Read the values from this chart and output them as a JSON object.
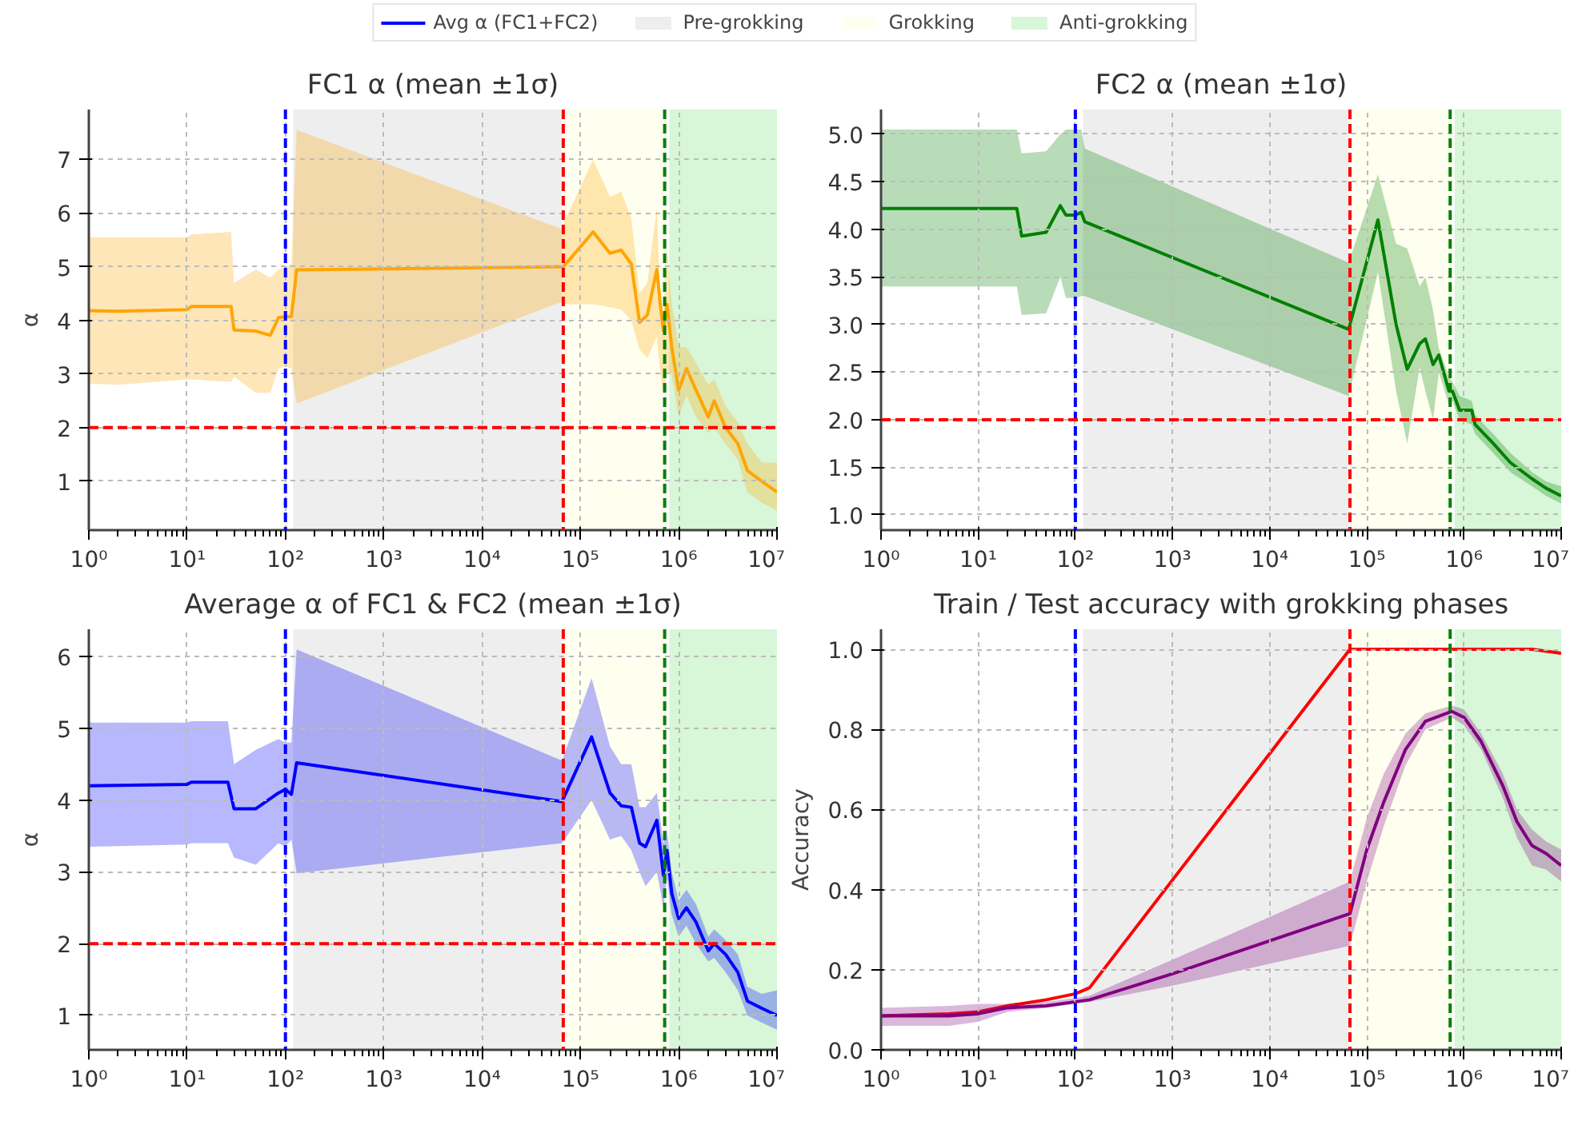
{
  "chart_data": [
    {
      "type": "line",
      "title": "FC1 α (mean ±1σ)",
      "ylabel": "α",
      "log": "x",
      "grid": true,
      "xlim": [
        1,
        10000000
      ],
      "ylim": [
        0.09,
        7.93
      ],
      "xticks": [
        {
          "value": 1,
          "label": "10⁰"
        },
        {
          "value": 10,
          "label": "10¹"
        },
        {
          "value": 100,
          "label": "10²"
        },
        {
          "value": 1000,
          "label": "10³"
        },
        {
          "value": 10000,
          "label": "10⁴"
        },
        {
          "value": 100000,
          "label": "10⁵"
        },
        {
          "value": 1000000,
          "label": "10⁶"
        },
        {
          "value": 10000000,
          "label": "10⁷"
        }
      ],
      "yticks": [
        1,
        2,
        3,
        4,
        5,
        6,
        7
      ],
      "bands": [
        {
          "axis": "x",
          "from": 120,
          "to": 65000,
          "color": "#eeeeee"
        },
        {
          "axis": "x",
          "from": 70000,
          "to": 750000,
          "color": "#fffff0"
        },
        {
          "axis": "x",
          "from": 800000,
          "to": 10000000,
          "color": "#d8f6d8"
        }
      ],
      "ref_lines": [
        {
          "axis": "x",
          "value": 100,
          "color": "#0000ff",
          "line_style": "dashed"
        },
        {
          "axis": "x",
          "value": 67000,
          "color": "#ff0000",
          "line_style": "dashed"
        },
        {
          "axis": "x",
          "value": 720000,
          "color": "#008000",
          "line_style": "dashed"
        },
        {
          "axis": "y",
          "value": 2,
          "color": "#ff0000",
          "line_style": "dashed"
        }
      ],
      "series": [
        {
          "color": "#ffa500",
          "x": [
            1,
            2,
            10,
            11,
            28,
            30,
            50,
            70,
            85,
            100,
            115,
            130,
            65000,
            67000,
            135000,
            200000,
            260000,
            330000,
            400000,
            480000,
            600000,
            650000,
            700000,
            760000,
            850000,
            1000000,
            1200000,
            1500000,
            2000000,
            2300000,
            3000000,
            4000000,
            5000000,
            7000000,
            10000000
          ],
          "values": [
            4.18,
            4.17,
            4.2,
            4.26,
            4.26,
            3.82,
            3.8,
            3.72,
            4.05,
            4.07,
            4.07,
            4.94,
            5.0,
            5.0,
            5.65,
            5.25,
            5.31,
            5.05,
            3.96,
            4.1,
            4.95,
            4.3,
            3.8,
            4.3,
            3.5,
            2.7,
            3.1,
            2.7,
            2.2,
            2.5,
            2.0,
            1.7,
            1.2,
            1.0,
            0.8
          ],
          "lower": [
            2.82,
            2.8,
            2.9,
            2.9,
            2.85,
            2.95,
            2.65,
            2.65,
            3.1,
            3.15,
            3.1,
            2.45,
            4.35,
            4.3,
            4.3,
            4.25,
            4.2,
            4.0,
            3.45,
            3.3,
            3.7,
            3.0,
            2.6,
            3.0,
            3.0,
            2.2,
            2.6,
            2.2,
            1.9,
            2.0,
            1.7,
            1.4,
            0.8,
            0.6,
            0.45
          ],
          "upper": [
            5.55,
            5.55,
            5.55,
            5.6,
            5.65,
            4.7,
            4.95,
            4.8,
            4.95,
            5.0,
            5.05,
            7.55,
            5.7,
            5.8,
            7.0,
            6.3,
            6.4,
            5.9,
            4.5,
            4.7,
            6.1,
            4.3,
            3.9,
            5.4,
            4.3,
            3.5,
            3.5,
            3.2,
            2.8,
            2.9,
            2.4,
            2.1,
            1.7,
            1.35,
            1.35
          ]
        }
      ]
    },
    {
      "type": "line",
      "title": "FC2 α (mean ±1σ)",
      "log": "x",
      "grid": true,
      "xlim": [
        1,
        10000000
      ],
      "ylim": [
        0.84,
        5.26
      ],
      "xticks": [
        {
          "value": 1,
          "label": "10⁰"
        },
        {
          "value": 10,
          "label": "10¹"
        },
        {
          "value": 100,
          "label": "10²"
        },
        {
          "value": 1000,
          "label": "10³"
        },
        {
          "value": 10000,
          "label": "10⁴"
        },
        {
          "value": 100000,
          "label": "10⁵"
        },
        {
          "value": 1000000,
          "label": "10⁶"
        },
        {
          "value": 10000000,
          "label": "10⁷"
        }
      ],
      "yticks": [
        {
          "value": 1,
          "label": "1.0"
        },
        1.5,
        {
          "value": 2,
          "label": "2.0"
        },
        2.5,
        {
          "value": 3,
          "label": "3.0"
        },
        3.5,
        {
          "value": 4,
          "label": "4.0"
        },
        4.5,
        {
          "value": 5,
          "label": "5.0"
        }
      ],
      "bands": [
        {
          "axis": "x",
          "from": 120,
          "to": 65000,
          "color": "#eeeeee"
        },
        {
          "axis": "x",
          "from": 70000,
          "to": 750000,
          "color": "#fffff0"
        },
        {
          "axis": "x",
          "from": 800000,
          "to": 10000000,
          "color": "#d8f6d8"
        }
      ],
      "ref_lines": [
        {
          "axis": "x",
          "value": 100,
          "color": "#0000ff",
          "line_style": "dashed"
        },
        {
          "axis": "x",
          "value": 67000,
          "color": "#ff0000",
          "line_style": "dashed"
        },
        {
          "axis": "x",
          "value": 720000,
          "color": "#008000",
          "line_style": "dashed"
        },
        {
          "axis": "y",
          "value": 2,
          "color": "#ff0000",
          "line_style": "dashed"
        }
      ],
      "series": [
        {
          "color": "#008000",
          "x": [
            1,
            25,
            28,
            50,
            70,
            80,
            100,
            115,
            125,
            65000,
            130000,
            200000,
            260000,
            350000,
            400000,
            480000,
            550000,
            700000,
            760000,
            900000,
            1200000,
            1300000,
            2000000,
            3000000,
            5000000,
            7000000,
            10000000
          ],
          "values": [
            4.22,
            4.22,
            3.93,
            3.97,
            4.25,
            4.15,
            4.15,
            4.18,
            4.08,
            2.95,
            4.1,
            3.0,
            2.53,
            2.8,
            2.85,
            2.58,
            2.68,
            2.3,
            2.3,
            2.1,
            2.1,
            1.95,
            1.75,
            1.55,
            1.38,
            1.28,
            1.2
          ],
          "lower": [
            3.4,
            3.4,
            3.1,
            3.12,
            3.5,
            3.28,
            3.28,
            3.3,
            3.3,
            2.25,
            3.55,
            2.3,
            1.75,
            2.55,
            2.3,
            2.0,
            2.5,
            2.15,
            2.2,
            2.0,
            1.95,
            1.85,
            1.65,
            1.45,
            1.3,
            1.2,
            1.12
          ],
          "upper": [
            5.05,
            5.05,
            4.8,
            4.82,
            5.0,
            5.05,
            5.05,
            5.05,
            4.85,
            3.65,
            4.58,
            3.85,
            3.8,
            3.4,
            3.5,
            3.15,
            2.75,
            2.45,
            2.4,
            2.25,
            2.2,
            2.05,
            1.85,
            1.65,
            1.45,
            1.35,
            1.3
          ]
        }
      ]
    },
    {
      "type": "line",
      "title": "Average α of FC1 & FC2 (mean ±1σ)",
      "ylabel": "α",
      "log": "x",
      "grid": true,
      "legend": "top",
      "xlim": [
        1,
        10000000
      ],
      "ylim": [
        0.52,
        6.38
      ],
      "xticks": [
        {
          "value": 1,
          "label": "10⁰"
        },
        {
          "value": 10,
          "label": "10¹"
        },
        {
          "value": 100,
          "label": "10²"
        },
        {
          "value": 1000,
          "label": "10³"
        },
        {
          "value": 10000,
          "label": "10⁴"
        },
        {
          "value": 100000,
          "label": "10⁵"
        },
        {
          "value": 1000000,
          "label": "10⁶"
        },
        {
          "value": 10000000,
          "label": "10⁷"
        }
      ],
      "yticks": [
        1,
        2,
        3,
        4,
        5,
        6
      ],
      "bands": [
        {
          "axis": "x",
          "from": 120,
          "to": 65000,
          "color": "#eeeeee",
          "label": "Pre-grokking"
        },
        {
          "axis": "x",
          "from": 70000,
          "to": 750000,
          "color": "#fffff0",
          "label": "Grokking"
        },
        {
          "axis": "x",
          "from": 800000,
          "to": 10000000,
          "color": "#d8f6d8",
          "label": "Anti-grokking"
        }
      ],
      "ref_lines": [
        {
          "axis": "x",
          "value": 100,
          "color": "#0000ff",
          "line_style": "dashed"
        },
        {
          "axis": "x",
          "value": 67000,
          "color": "#ff0000",
          "line_style": "dashed"
        },
        {
          "axis": "x",
          "value": 720000,
          "color": "#008000",
          "line_style": "dashed"
        },
        {
          "axis": "y",
          "value": 2,
          "color": "#ff0000",
          "line_style": "dashed"
        }
      ],
      "series": [
        {
          "name": "Avg α (FC1+FC2)",
          "color": "#0000ff",
          "x": [
            1,
            10,
            11,
            26,
            30,
            50,
            85,
            100,
            115,
            130,
            65000,
            130000,
            200000,
            260000,
            330000,
            400000,
            460000,
            600000,
            700000,
            760000,
            850000,
            1000000,
            1200000,
            1500000,
            2000000,
            2300000,
            3000000,
            4000000,
            5000000,
            7000000,
            10000000
          ],
          "values": [
            4.2,
            4.22,
            4.25,
            4.25,
            3.88,
            3.88,
            4.1,
            4.15,
            4.08,
            4.52,
            3.98,
            4.88,
            4.1,
            3.92,
            3.9,
            3.4,
            3.35,
            3.72,
            2.95,
            3.3,
            2.7,
            2.35,
            2.5,
            2.3,
            1.9,
            2.0,
            1.85,
            1.6,
            1.2,
            1.1,
            1.0
          ],
          "lower": [
            3.35,
            3.38,
            3.4,
            3.4,
            3.2,
            3.1,
            3.4,
            3.35,
            3.45,
            2.98,
            3.4,
            4.0,
            3.45,
            3.5,
            3.3,
            3.0,
            2.8,
            3.0,
            2.5,
            2.9,
            2.4,
            2.1,
            2.25,
            2.0,
            1.75,
            1.8,
            1.6,
            1.35,
            1.0,
            0.9,
            0.8
          ],
          "upper": [
            5.08,
            5.08,
            5.1,
            5.1,
            4.5,
            4.7,
            4.85,
            4.8,
            4.8,
            6.1,
            4.55,
            5.7,
            4.75,
            4.5,
            4.5,
            3.9,
            3.9,
            4.1,
            3.4,
            3.6,
            3.0,
            2.6,
            2.75,
            2.55,
            2.1,
            2.2,
            2.05,
            1.85,
            1.4,
            1.3,
            1.35
          ]
        }
      ]
    },
    {
      "type": "line",
      "title": "Train / Test accuracy with grokking phases",
      "ylabel": "Accuracy",
      "log": "x",
      "grid": true,
      "xlim": [
        1,
        10000000
      ],
      "ylim": [
        0,
        1.05
      ],
      "xticks": [
        {
          "value": 1,
          "label": "10⁰"
        },
        {
          "value": 10,
          "label": "10¹"
        },
        {
          "value": 100,
          "label": "10²"
        },
        {
          "value": 1000,
          "label": "10³"
        },
        {
          "value": 10000,
          "label": "10⁴"
        },
        {
          "value": 100000,
          "label": "10⁵"
        },
        {
          "value": 1000000,
          "label": "10⁶"
        },
        {
          "value": 10000000,
          "label": "10⁷"
        }
      ],
      "yticks": [
        {
          "value": 0,
          "label": "0.0"
        },
        0.2,
        0.4,
        0.6,
        0.8,
        {
          "value": 1,
          "label": "1.0"
        }
      ],
      "bands": [
        {
          "axis": "x",
          "from": 120,
          "to": 65000,
          "color": "#eeeeee"
        },
        {
          "axis": "x",
          "from": 70000,
          "to": 750000,
          "color": "#fffff0"
        },
        {
          "axis": "x",
          "from": 800000,
          "to": 10000000,
          "color": "#d8f6d8"
        }
      ],
      "ref_lines": [
        {
          "axis": "x",
          "value": 100,
          "color": "#0000ff",
          "line_style": "dashed"
        },
        {
          "axis": "x",
          "value": 67000,
          "color": "#ff0000",
          "line_style": "dashed"
        },
        {
          "axis": "x",
          "value": 720000,
          "color": "#008000",
          "line_style": "dashed"
        }
      ],
      "series": [
        {
          "color": "#ff0000",
          "x": [
            1,
            5,
            10,
            20,
            50,
            100,
            140,
            67000,
            5000000,
            10000000
          ],
          "values": [
            0.085,
            0.09,
            0.095,
            0.11,
            0.125,
            0.14,
            0.155,
            1.0,
            1.0,
            0.99
          ]
        },
        {
          "color": "#800080",
          "x": [
            1,
            5,
            10,
            20,
            50,
            100,
            140,
            1000,
            67000,
            100000,
            150000,
            250000,
            400000,
            750000,
            1000000,
            1500000,
            2500000,
            3500000,
            5000000,
            7000000,
            10000000
          ],
          "values": [
            0.085,
            0.085,
            0.09,
            0.105,
            0.11,
            0.12,
            0.125,
            0.19,
            0.34,
            0.5,
            0.62,
            0.75,
            0.82,
            0.845,
            0.83,
            0.77,
            0.66,
            0.57,
            0.51,
            0.49,
            0.46
          ],
          "lower": [
            0.06,
            0.06,
            0.07,
            0.095,
            0.105,
            0.115,
            0.12,
            0.16,
            0.26,
            0.42,
            0.56,
            0.71,
            0.8,
            0.83,
            0.81,
            0.75,
            0.63,
            0.53,
            0.46,
            0.45,
            0.42
          ],
          "upper": [
            0.105,
            0.11,
            0.115,
            0.115,
            0.12,
            0.13,
            0.135,
            0.225,
            0.42,
            0.58,
            0.69,
            0.79,
            0.84,
            0.86,
            0.85,
            0.79,
            0.69,
            0.6,
            0.55,
            0.52,
            0.5
          ]
        }
      ]
    }
  ]
}
